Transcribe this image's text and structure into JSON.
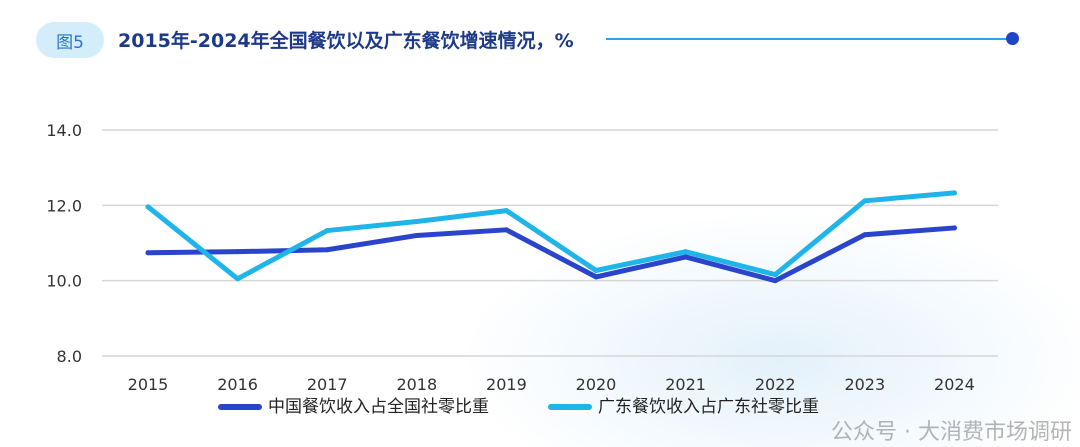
{
  "header": {
    "badge": "图5",
    "title": "2015年-2024年全国餐饮以及广东餐饮增速情况，%"
  },
  "watermark": "公众号 · 大消费市场调研",
  "chart_data": {
    "type": "line",
    "title": "2015年-2024年全国餐饮以及广东餐饮增速情况，%",
    "categories": [
      "2015",
      "2016",
      "2017",
      "2018",
      "2019",
      "2020",
      "2021",
      "2022",
      "2023",
      "2024"
    ],
    "yticks": [
      "8.0",
      "10.0",
      "12.0",
      "14.0"
    ],
    "ylim": [
      8,
      14
    ],
    "grid": true,
    "legend_position": "bottom",
    "series": [
      {
        "name": "中国餐饮收入占全国社零比重",
        "color": "#2a45cc",
        "values": [
          10.74,
          10.77,
          10.82,
          11.2,
          11.35,
          10.1,
          10.63,
          10.0,
          11.22,
          11.4
        ]
      },
      {
        "name": "广东餐饮收入占广东社零比重",
        "color": "#1fb5e8",
        "values": [
          11.96,
          10.05,
          11.33,
          11.57,
          11.86,
          10.27,
          10.77,
          10.16,
          12.12,
          12.33
        ]
      }
    ]
  }
}
